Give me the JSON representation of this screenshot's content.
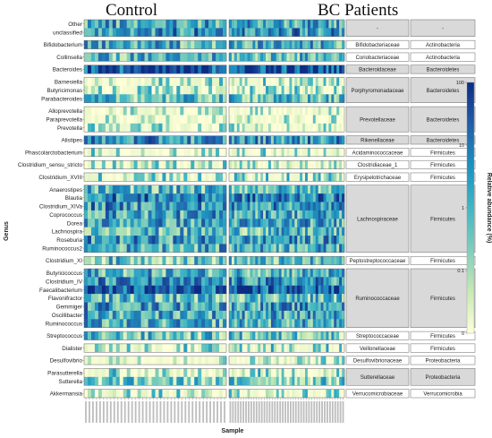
{
  "chart_data": {
    "type": "heatmap",
    "group_titles": [
      "Control",
      "BC Patients"
    ],
    "ylabel": "Genus",
    "xlabel": "Sample",
    "legend": {
      "title": "Relative abundance (%)",
      "ticks": [
        "100",
        "10",
        "1",
        "0.1",
        "0"
      ],
      "colors": [
        "#ffffd9",
        "#c7e9b4",
        "#7fcdbb",
        "#41b6c4",
        "#1d91c0",
        "#225ea8",
        "#0c2c84"
      ],
      "position": "right"
    },
    "blocks": [
      {
        "genera": [
          "Other",
          "unclassified"
        ],
        "family": "-",
        "phylum": "-",
        "family_shaded": true,
        "phylum_shaded": true
      },
      {
        "genera": [
          "Bifidobacterium"
        ],
        "family": "Bifidobacteriaceae",
        "phylum": "Actinobacteria",
        "family_shaded": false,
        "phylum_shaded": false
      },
      {
        "genera": [
          "Collinsella"
        ],
        "family": "Coriobacteriaceae",
        "phylum": "Actinobacteria",
        "family_shaded": false,
        "phylum_shaded": false
      },
      {
        "genera": [
          "Bacteroides"
        ],
        "family": "Bacteroidaceae",
        "phylum": "Bacteroidetes",
        "family_shaded": true,
        "phylum_shaded": true
      },
      {
        "genera": [
          "Barnesiella",
          "Butyricimonas",
          "Parabacteroides"
        ],
        "family": "Porphyromonadaceae",
        "phylum": "Bacteroidetes",
        "family_shaded": true,
        "phylum_shaded": true
      },
      {
        "genera": [
          "Alloprevotella",
          "Paraprevotella",
          "Prevotella"
        ],
        "family": "Prevotellaceae",
        "phylum": "Bacteroidetes",
        "family_shaded": true,
        "phylum_shaded": true
      },
      {
        "genera": [
          "Alistipes"
        ],
        "family": "Rikenellaceae",
        "phylum": "Bacteroidetes",
        "family_shaded": true,
        "phylum_shaded": true
      },
      {
        "genera": [
          "Phascolarctobacterium"
        ],
        "family": "Acidaminococcaceae",
        "phylum": "Firmicutes",
        "family_shaded": false,
        "phylum_shaded": false
      },
      {
        "genera": [
          "Clostridium_sensu_stricto"
        ],
        "family": "Clostridiaceae_1",
        "phylum": "Firmicutes",
        "family_shaded": false,
        "phylum_shaded": false
      },
      {
        "genera": [
          "Clostridium_XVIII"
        ],
        "family": "Erysipelotrichaceae",
        "phylum": "Firmicutes",
        "family_shaded": false,
        "phylum_shaded": false
      },
      {
        "genera": [
          "Anaerostipes",
          "Blautia",
          "Clostridium_XIVa",
          "Coprococcus",
          "Dorea",
          "Lachnospira",
          "Roseburia",
          "Ruminococcus2"
        ],
        "family": "Lachnospiraceae",
        "phylum": "Firmicutes",
        "family_shaded": true,
        "phylum_shaded": true
      },
      {
        "genera": [
          "Clostridium_XI"
        ],
        "family": "Peptostreptococcaceae",
        "phylum": "Firmicutes",
        "family_shaded": false,
        "phylum_shaded": false
      },
      {
        "genera": [
          "Butyricicoccus",
          "Clostridium_IV",
          "Faecalibacterium",
          "Flavonifractor",
          "Gemmiger",
          "Oscillibacter",
          "Ruminococcus"
        ],
        "family": "Ruminococcaceae",
        "phylum": "Firmicutes",
        "family_shaded": true,
        "phylum_shaded": true
      },
      {
        "genera": [
          "Streptococcus"
        ],
        "family": "Streptococcaceae",
        "phylum": "Firmicutes",
        "family_shaded": false,
        "phylum_shaded": false
      },
      {
        "genera": [
          "Dialister"
        ],
        "family": "Veillonellaceae",
        "phylum": "Firmicutes",
        "family_shaded": false,
        "phylum_shaded": false
      },
      {
        "genera": [
          "Desulfovibrio"
        ],
        "family": "Desulfovibrionaceae",
        "phylum": "Proteobacteria",
        "family_shaded": false,
        "phylum_shaded": false
      },
      {
        "genera": [
          "Parasutterella",
          "Sutterella"
        ],
        "family": "Sutterellaceae",
        "phylum": "Proteobacteria",
        "family_shaded": true,
        "phylum_shaded": true
      },
      {
        "genera": [
          "Akkermansia"
        ],
        "family": "Verrucomicrobiaceae",
        "phylum": "Verrucomicrobia",
        "family_shaded": false,
        "phylum_shaded": false
      }
    ],
    "groups": [
      {
        "name": "Control",
        "n_samples": 40
      },
      {
        "name": "BC Patients",
        "n_samples": 44
      }
    ],
    "genus_mean_level": {
      "Other": 0.55,
      "unclassified": 0.62,
      "Bifidobacterium": 0.5,
      "Collinsella": 0.45,
      "Bacteroides": 0.88,
      "Barnesiella": 0.3,
      "Butyricimonas": 0.28,
      "Parabacteroides": 0.42,
      "Alloprevotella": 0.1,
      "Paraprevotella": 0.12,
      "Prevotella": 0.25,
      "Alistipes": 0.6,
      "Phascolarctobacterium": 0.25,
      "Clostridium_sensu_stricto": 0.22,
      "Clostridium_XVIII": 0.3,
      "Anaerostipes": 0.45,
      "Blautia": 0.7,
      "Clostridium_XIVa": 0.6,
      "Coprococcus": 0.55,
      "Dorea": 0.55,
      "Lachnospira": 0.45,
      "Roseburia": 0.58,
      "Ruminococcus2": 0.52,
      "Clostridium_XI": 0.4,
      "Butyricicoccus": 0.5,
      "Clostridium_IV": 0.6,
      "Faecalibacterium": 0.8,
      "Flavonifractor": 0.45,
      "Gemmiger": 0.58,
      "Oscillibacter": 0.55,
      "Ruminococcus": 0.5,
      "Streptococcus": 0.4,
      "Dialister": 0.3,
      "Desulfovibrio": 0.2,
      "Parasutterella": 0.3,
      "Sutterella": 0.35,
      "Akkermansia": 0.25
    }
  }
}
